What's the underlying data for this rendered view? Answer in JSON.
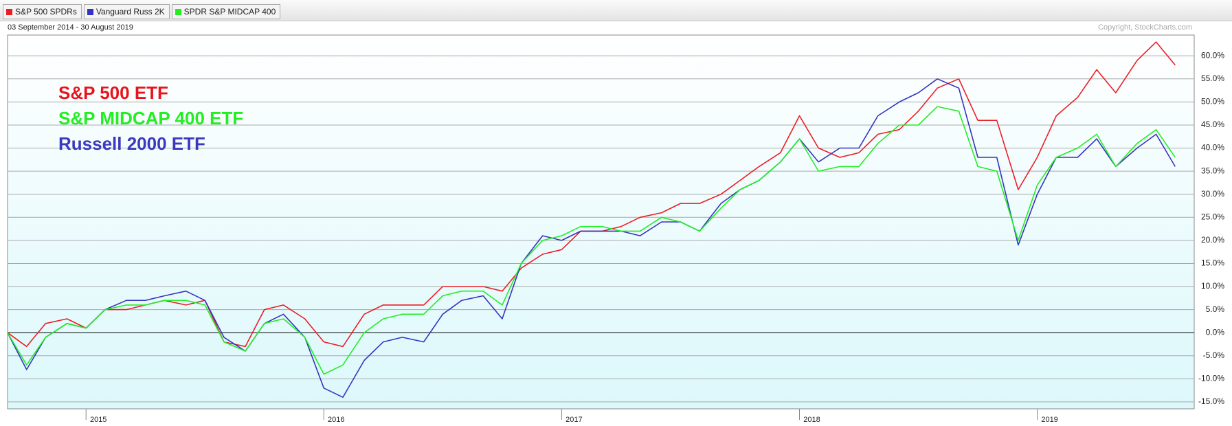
{
  "chart_data": {
    "type": "line",
    "subtitle": "03 September 2014 - 30 August 2019",
    "copyright": "Copyright, StockCharts.com",
    "annotations": [
      {
        "text": "S&P 500 ETF",
        "color": "#e8141c"
      },
      {
        "text": "S&P MIDCAP 400 ETF",
        "color": "#22ee22"
      },
      {
        "text": "Russell 2000 ETF",
        "color": "#3a3ac0"
      }
    ],
    "x": [
      2014.67,
      2014.75,
      2014.83,
      2014.92,
      2015.0,
      2015.08,
      2015.17,
      2015.25,
      2015.33,
      2015.42,
      2015.5,
      2015.58,
      2015.67,
      2015.75,
      2015.83,
      2015.92,
      2016.0,
      2016.08,
      2016.17,
      2016.25,
      2016.33,
      2016.42,
      2016.5,
      2016.58,
      2016.67,
      2016.75,
      2016.83,
      2016.92,
      2017.0,
      2017.08,
      2017.17,
      2017.25,
      2017.33,
      2017.42,
      2017.5,
      2017.58,
      2017.67,
      2017.75,
      2017.83,
      2017.92,
      2018.0,
      2018.08,
      2018.17,
      2018.25,
      2018.33,
      2018.42,
      2018.5,
      2018.58,
      2018.67,
      2018.75,
      2018.83,
      2018.92,
      2019.0,
      2019.08,
      2019.17,
      2019.25,
      2019.33,
      2019.42,
      2019.5,
      2019.58
    ],
    "series": [
      {
        "name": "S&P 500 SPDRs",
        "color": "#ee1c24",
        "values": [
          0,
          -3,
          2,
          3,
          1,
          5,
          5,
          6,
          7,
          6,
          7,
          -2,
          -3,
          5,
          6,
          3,
          -2,
          -3,
          4,
          6,
          6,
          6,
          10,
          10,
          10,
          9,
          14,
          17,
          18,
          22,
          22,
          23,
          25,
          26,
          28,
          28,
          30,
          33,
          36,
          39,
          47,
          40,
          38,
          39,
          43,
          44,
          48,
          53,
          55,
          46,
          46,
          31,
          38,
          47,
          51,
          57,
          52,
          59,
          63,
          58
        ]
      },
      {
        "name": "Vanguard Russ 2K",
        "color": "#3434c0",
        "values": [
          0,
          -8,
          -1,
          2,
          1,
          5,
          7,
          7,
          8,
          9,
          7,
          -1,
          -4,
          2,
          4,
          -1,
          -12,
          -14,
          -6,
          -2,
          -1,
          -2,
          4,
          7,
          8,
          3,
          15,
          21,
          20,
          22,
          22,
          22,
          21,
          24,
          24,
          22,
          28,
          31,
          33,
          37,
          42,
          37,
          40,
          40,
          47,
          50,
          52,
          55,
          53,
          38,
          38,
          19,
          30,
          38,
          38,
          42,
          36,
          40,
          43,
          36
        ]
      },
      {
        "name": "SPDR S&P MIDCAP 400",
        "color": "#22ee22",
        "values": [
          0,
          -7,
          -1,
          2,
          1,
          5,
          6,
          6,
          7,
          7,
          6,
          -2,
          -4,
          2,
          3,
          -1,
          -9,
          -7,
          0,
          3,
          4,
          4,
          8,
          9,
          9,
          6,
          15,
          20,
          21,
          23,
          23,
          22,
          22,
          25,
          24,
          22,
          27,
          31,
          33,
          37,
          42,
          35,
          36,
          36,
          41,
          45,
          45,
          49,
          48,
          36,
          35,
          20,
          32,
          38,
          40,
          43,
          36,
          41,
          44,
          38
        ]
      }
    ],
    "xlim": [
      2014.67,
      2019.66
    ],
    "xticks": [
      2015,
      2016,
      2017,
      2018,
      2019
    ],
    "ylim": [
      -16.5,
      64.5
    ],
    "yticks": [
      {
        "value": -15,
        "label": "-15.0%"
      },
      {
        "value": -10,
        "label": "-10.0%"
      },
      {
        "value": -5,
        "label": "-5.0%"
      },
      {
        "value": 0,
        "label": "0.0%"
      },
      {
        "value": 5,
        "label": "5.0%"
      },
      {
        "value": 10,
        "label": "10.0%"
      },
      {
        "value": 15,
        "label": "15.0%"
      },
      {
        "value": 20,
        "label": "20.0%"
      },
      {
        "value": 25,
        "label": "25.0%"
      },
      {
        "value": 30,
        "label": "30.0%"
      },
      {
        "value": 35,
        "label": "35.0%"
      },
      {
        "value": 40,
        "label": "40.0%"
      },
      {
        "value": 45,
        "label": "45.0%"
      },
      {
        "value": 50,
        "label": "50.0%"
      },
      {
        "value": 55,
        "label": "55.0%"
      },
      {
        "value": 60,
        "label": "60.0%"
      }
    ],
    "grid": true
  }
}
